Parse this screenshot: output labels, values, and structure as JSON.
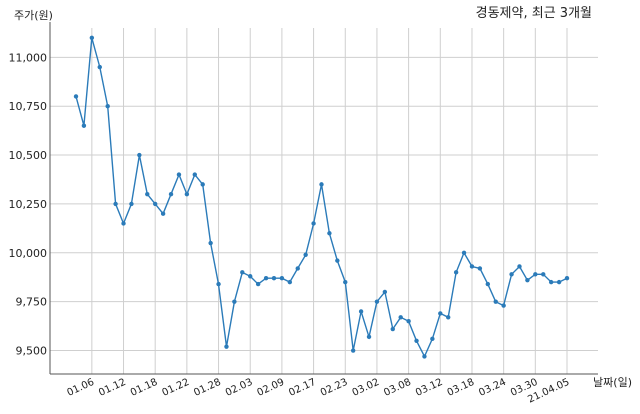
{
  "chart_data": {
    "type": "line",
    "title": "경동제약, 최근 3개월",
    "ylabel": "주가(원)",
    "xlabel": "날짜(일)",
    "ylim": [
      9380,
      11150
    ],
    "yticks": [
      9500,
      9750,
      10000,
      10250,
      10500,
      10750,
      11000
    ],
    "ytick_labels": [
      "9,500",
      "9,750",
      "10,000",
      "10,250",
      "10,500",
      "10,750",
      "11,000"
    ],
    "grid": true,
    "xtick_labels": [
      "01.06",
      "01.12",
      "01.18",
      "01.22",
      "01.28",
      "02.03",
      "02.09",
      "02.17",
      "02.23",
      "03.02",
      "03.08",
      "03.12",
      "03.18",
      "03.24",
      "03.30",
      "21.04.05"
    ],
    "xtick_index": [
      2,
      6,
      10,
      14,
      18,
      22,
      26,
      30,
      34,
      38,
      42,
      46,
      50,
      54,
      58,
      62
    ],
    "series": [
      {
        "color": "#2b7bb9",
        "values": [
          10800,
          10650,
          11100,
          10950,
          10750,
          10250,
          10150,
          10250,
          10500,
          10300,
          10250,
          10200,
          10300,
          10400,
          10300,
          10400,
          10350,
          10050,
          9840,
          9520,
          9750,
          9900,
          9880,
          9840,
          9870,
          9870,
          9870,
          9850,
          9920,
          9990,
          10150,
          10350,
          10100,
          9960,
          9850,
          9500,
          9700,
          9570,
          9750,
          9800,
          9610,
          9670,
          9650,
          9550,
          9470,
          9560,
          9690,
          9670,
          9900,
          10000,
          9930,
          9920,
          9840,
          9750,
          9730,
          9890,
          9930,
          9860,
          9890,
          9890,
          9850,
          9850,
          9870
        ]
      }
    ]
  }
}
